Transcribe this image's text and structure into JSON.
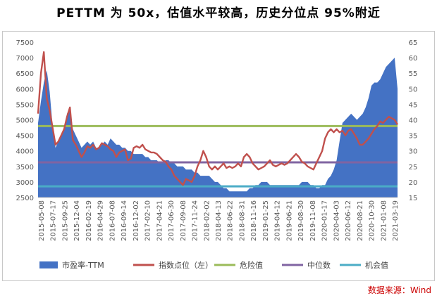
{
  "title": "PETTM 为 50x，估值水平较高，历史分位点 95%附近",
  "source": "数据来源：Wind",
  "chart_data": {
    "type": "area+line",
    "x_tick_labels": [
      "2015-05-08",
      "2015-07-17",
      "2015-09-25",
      "2015-12-04",
      "2016-02-19",
      "2016-04-29",
      "2016-07-08",
      "2016-09-14",
      "2016-12-02",
      "2017-02-10",
      "2017-04-21",
      "2017-06-30",
      "2017-09-08",
      "2017-11-24",
      "2018-02-02",
      "2018-04-13",
      "2018-06-22",
      "2018-08-31",
      "2018-11-16",
      "2019-01-25",
      "2019-04-12",
      "2019-06-21",
      "2019-08-30",
      "2019-11-08",
      "2020-01-17",
      "2020-04-03",
      "2020-06-12",
      "2020-08-21",
      "2020-10-30",
      "2021-01-08",
      "2021-03-19"
    ],
    "y_left": {
      "min": 2500,
      "max": 7500,
      "step": 500,
      "label": "指数点位（左）"
    },
    "y_right": {
      "min": 15,
      "max": 65,
      "step": 5
    },
    "grid": false,
    "legend_position": "bottom",
    "series": [
      {
        "name": "市盈率-TTM",
        "kind": "area",
        "axis": "right",
        "color": "#4472c4",
        "values": [
          39,
          46,
          52,
          56,
          49,
          38,
          31,
          33,
          35,
          37,
          42,
          44,
          37,
          35,
          33,
          31,
          32,
          33,
          32,
          33,
          31,
          31,
          32,
          33,
          32,
          34,
          33,
          32,
          32,
          31,
          31,
          30,
          30,
          29,
          29,
          29,
          29,
          28,
          28,
          27,
          27,
          27,
          26,
          26,
          27,
          27,
          26,
          26,
          25,
          25,
          25,
          24,
          24,
          24,
          23,
          23,
          22,
          22,
          22,
          22,
          21,
          20,
          20,
          19,
          18,
          18,
          17,
          17,
          17,
          17,
          17,
          17,
          17,
          18,
          18,
          19,
          19,
          20,
          20,
          20,
          19,
          19,
          19,
          19,
          19,
          19,
          19,
          19,
          19,
          19,
          19,
          20,
          20,
          20,
          19,
          19,
          18,
          18,
          19,
          19,
          21,
          22,
          24,
          27,
          33,
          39,
          40,
          41,
          42,
          41,
          40,
          41,
          42,
          44,
          47,
          51,
          52,
          52,
          53,
          55,
          57,
          58,
          59,
          60,
          50
        ]
      },
      {
        "name": "指数点位（左）",
        "kind": "line",
        "axis": "left",
        "color": "#c0504d",
        "values": [
          5200,
          6500,
          7180,
          5700,
          5300,
          4750,
          4200,
          4300,
          4500,
          4700,
          5100,
          5400,
          4350,
          4200,
          4000,
          3800,
          3950,
          4150,
          4100,
          4200,
          4050,
          4100,
          4250,
          4200,
          4150,
          4050,
          4000,
          3800,
          3950,
          4000,
          4050,
          3700,
          3750,
          4100,
          4150,
          4100,
          4200,
          4050,
          4000,
          3950,
          3950,
          3900,
          3800,
          3700,
          3650,
          3500,
          3400,
          3200,
          3100,
          3000,
          2900,
          3100,
          3050,
          3000,
          3200,
          3500,
          3700,
          4000,
          3800,
          3500,
          3400,
          3500,
          3400,
          3500,
          3600,
          3450,
          3500,
          3450,
          3500,
          3600,
          3500,
          3800,
          3900,
          3800,
          3600,
          3500,
          3400,
          3450,
          3500,
          3600,
          3700,
          3550,
          3500,
          3550,
          3600,
          3550,
          3600,
          3700,
          3800,
          3900,
          3800,
          3650,
          3600,
          3500,
          3450,
          3400,
          3600,
          3800,
          4000,
          4400,
          4600,
          4700,
          4600,
          4700,
          4600,
          4650,
          4500,
          4650,
          4700,
          4550,
          4400,
          4200,
          4200,
          4300,
          4400,
          4550,
          4700,
          4800,
          4950,
          4900,
          5000,
          5100,
          5050,
          5000,
          4850
        ]
      },
      {
        "name": "危险值",
        "kind": "hline",
        "axis": "left",
        "color": "#9bbb59",
        "value": 4800
      },
      {
        "name": "中位数",
        "kind": "hline",
        "axis": "left",
        "color": "#8064a2",
        "value": 3630
      },
      {
        "name": "机会值",
        "kind": "hline",
        "axis": "left",
        "color": "#4bacc6",
        "value": 2860
      }
    ]
  }
}
